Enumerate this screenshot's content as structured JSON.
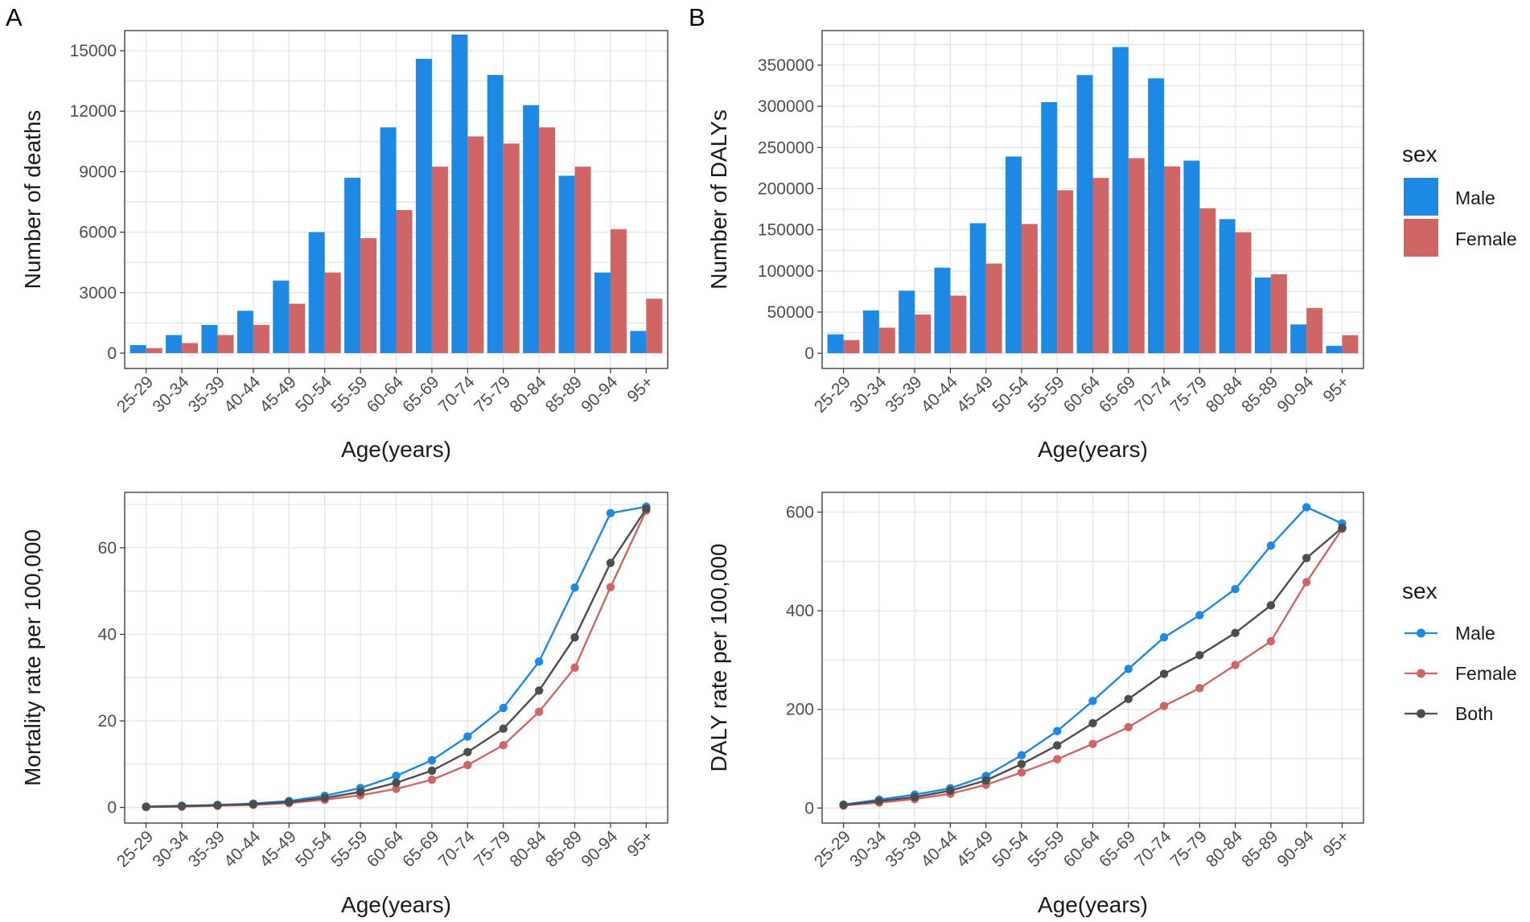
{
  "panel_labels": [
    "A",
    "B"
  ],
  "colors": {
    "male": "#1e88e5",
    "female": "#d06565",
    "both": "#4d4d4d"
  },
  "legends": {
    "bar": {
      "title": "sex",
      "items": [
        {
          "key": "male",
          "label": "Male"
        },
        {
          "key": "female",
          "label": "Female"
        }
      ]
    },
    "line": {
      "title": "sex",
      "items": [
        {
          "key": "male",
          "label": "Male"
        },
        {
          "key": "female",
          "label": "Female"
        },
        {
          "key": "both",
          "label": "Both"
        }
      ]
    }
  },
  "chart_data": [
    {
      "id": "deaths",
      "type": "bar",
      "title": "",
      "xlabel": "Age(years)",
      "ylabel": "Number of deaths",
      "categories": [
        "25-29",
        "30-34",
        "35-39",
        "40-44",
        "45-49",
        "50-54",
        "55-59",
        "60-64",
        "65-69",
        "70-74",
        "75-79",
        "80-84",
        "85-89",
        "90-94",
        "95+"
      ],
      "ylim": [
        -760,
        16000
      ],
      "yticks": [
        0,
        3000,
        6000,
        9000,
        12000,
        15000
      ],
      "ytick_labels": [
        "0",
        "3000",
        "6000",
        "9000",
        "12000",
        "15000"
      ],
      "grid": true,
      "series": [
        {
          "name": "Male",
          "key": "male",
          "values": [
            400,
            900,
            1400,
            2100,
            3600,
            6000,
            8700,
            11200,
            14600,
            15800,
            13800,
            12300,
            8800,
            4000,
            1100
          ]
        },
        {
          "name": "Female",
          "key": "female",
          "values": [
            250,
            500,
            900,
            1400,
            2450,
            4000,
            5700,
            7100,
            9250,
            10750,
            10400,
            11200,
            9250,
            6150,
            2700
          ]
        }
      ]
    },
    {
      "id": "dalys",
      "type": "bar",
      "title": "",
      "xlabel": "Age(years)",
      "ylabel": "Number of DALYs",
      "categories": [
        "25-29",
        "30-34",
        "35-39",
        "40-44",
        "45-49",
        "50-54",
        "55-59",
        "60-64",
        "65-69",
        "70-74",
        "75-79",
        "80-84",
        "85-89",
        "90-94",
        "95+"
      ],
      "ylim": [
        -18500,
        392000
      ],
      "yticks": [
        0,
        50000,
        100000,
        150000,
        200000,
        250000,
        300000,
        350000
      ],
      "ytick_labels": [
        "0",
        "50000",
        "100000",
        "150000",
        "200000",
        "250000",
        "300000",
        "350000"
      ],
      "grid": true,
      "series": [
        {
          "name": "Male",
          "key": "male",
          "values": [
            23000,
            52000,
            76000,
            104000,
            158000,
            239000,
            305000,
            338000,
            372000,
            334000,
            234000,
            163000,
            92000,
            35000,
            9000
          ]
        },
        {
          "name": "Female",
          "key": "female",
          "values": [
            16000,
            31000,
            47000,
            70000,
            109000,
            157000,
            198000,
            213000,
            237000,
            227000,
            176000,
            147000,
            96000,
            55000,
            22000
          ]
        }
      ]
    },
    {
      "id": "mortality",
      "type": "line",
      "title": "",
      "xlabel": "Age(years)",
      "ylabel": "Mortality rate per 100,000",
      "categories": [
        "25-29",
        "30-34",
        "35-39",
        "40-44",
        "45-49",
        "50-54",
        "55-59",
        "60-64",
        "65-69",
        "70-74",
        "75-79",
        "80-84",
        "85-89",
        "90-94",
        "95+"
      ],
      "ylim": [
        -3.6,
        72.8
      ],
      "yticks": [
        0,
        20,
        40,
        60
      ],
      "ytick_labels": [
        "0",
        "20",
        "40",
        "60"
      ],
      "grid": true,
      "series": [
        {
          "name": "Male",
          "key": "male",
          "values": [
            0.2,
            0.4,
            0.6,
            0.9,
            1.5,
            2.7,
            4.5,
            7.3,
            10.9,
            16.4,
            23.0,
            33.7,
            50.8,
            68.0,
            69.5
          ]
        },
        {
          "name": "Female",
          "key": "female",
          "values": [
            0.1,
            0.2,
            0.4,
            0.6,
            1.0,
            1.8,
            2.8,
            4.3,
            6.4,
            9.8,
            14.4,
            22.1,
            32.3,
            50.9,
            68.6
          ]
        },
        {
          "name": "Both",
          "key": "both",
          "values": [
            0.15,
            0.3,
            0.5,
            0.75,
            1.25,
            2.2,
            3.6,
            5.7,
            8.5,
            12.8,
            18.2,
            27.0,
            39.3,
            56.5,
            69.0
          ]
        }
      ]
    },
    {
      "id": "daly_rate",
      "type": "line",
      "title": "",
      "xlabel": "Age(years)",
      "ylabel": "DALY rate per 100,000",
      "categories": [
        "25-29",
        "30-34",
        "35-39",
        "40-44",
        "45-49",
        "50-54",
        "55-59",
        "60-64",
        "65-69",
        "70-74",
        "75-79",
        "80-84",
        "85-89",
        "90-94",
        "95+"
      ],
      "ylim": [
        -30.5,
        640
      ],
      "yticks": [
        0,
        200,
        400,
        600
      ],
      "ytick_labels": [
        "0",
        "200",
        "400",
        "600"
      ],
      "grid": true,
      "series": [
        {
          "name": "Male",
          "key": "male",
          "values": [
            7,
            17,
            27,
            40,
            65,
            107,
            156,
            217,
            282,
            346,
            391,
            444,
            532,
            610,
            577
          ]
        },
        {
          "name": "Female",
          "key": "female",
          "values": [
            5,
            11,
            18,
            29,
            47,
            72,
            99,
            130,
            164,
            207,
            243,
            290,
            338,
            458,
            566
          ]
        },
        {
          "name": "Both",
          "key": "both",
          "values": [
            6,
            14,
            22,
            35,
            56,
            89,
            127,
            172,
            221,
            272,
            310,
            355,
            411,
            507,
            568
          ]
        }
      ]
    }
  ]
}
